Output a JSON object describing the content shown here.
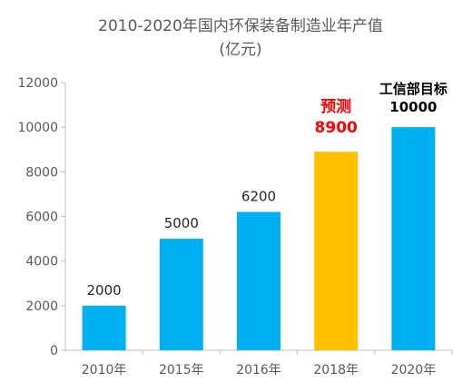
{
  "chart_data": {
    "type": "bar",
    "title_line1": "2010-2020年国内环保装备制造业年产值",
    "title_line2": "(亿元)",
    "categories": [
      "2010年",
      "2015年",
      "2016年",
      "2018年",
      "2020年"
    ],
    "values": [
      2000,
      5000,
      6200,
      8900,
      10000
    ],
    "data_labels": [
      "2000",
      "5000",
      "6200",
      "",
      ""
    ],
    "ylim": [
      0,
      12000
    ],
    "yticks": [
      "0",
      "2000",
      "4000",
      "6000",
      "8000",
      "10000",
      "12000"
    ],
    "colors": {
      "default": "#00b0f0",
      "highlight": "#ffc000"
    },
    "highlight_index": 3,
    "annotations": {
      "forecast_label": "预测",
      "forecast_value": "8900",
      "target_label": "工信部目标",
      "target_value": "10000"
    },
    "grid": false,
    "legend": "none"
  }
}
